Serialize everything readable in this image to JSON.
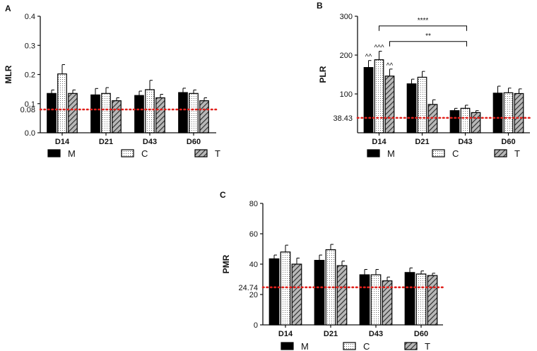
{
  "colors": {
    "ref_line": "#e0201b",
    "bar_M": "#000000",
    "axis": "#111111"
  },
  "legend_labels": {
    "M": "M",
    "C": "C",
    "T": "T"
  },
  "chart_data": [
    {
      "panel": "A",
      "type": "bar",
      "ylabel": "MLR",
      "categories": [
        "D14",
        "D21",
        "D43",
        "D60"
      ],
      "yticks": [
        "0.0",
        "0.1",
        "0.2",
        "0.3",
        "0.4"
      ],
      "ylim": [
        0,
        0.4
      ],
      "ref_line": {
        "value": 0.08,
        "label": "0.08"
      },
      "series": [
        {
          "name": "M",
          "values": [
            0.135,
            0.13,
            0.128,
            0.138
          ],
          "errors": [
            0.012,
            0.022,
            0.015,
            0.015
          ]
        },
        {
          "name": "C",
          "values": [
            0.202,
            0.135,
            0.148,
            0.135
          ],
          "errors": [
            0.032,
            0.02,
            0.032,
            0.012
          ]
        },
        {
          "name": "T",
          "values": [
            0.135,
            0.11,
            0.12,
            0.11
          ],
          "errors": [
            0.012,
            0.01,
            0.012,
            0.01
          ]
        }
      ],
      "annotations": []
    },
    {
      "panel": "B",
      "type": "bar",
      "ylabel": "PLR",
      "categories": [
        "D14",
        "D21",
        "D43",
        "D60"
      ],
      "yticks": [
        "100",
        "200",
        "300"
      ],
      "ylim": [
        0,
        300
      ],
      "ref_line": {
        "value": 38.43,
        "label": "38.43"
      },
      "series": [
        {
          "name": "M",
          "values": [
            168,
            126,
            57,
            102
          ],
          "errors": [
            18,
            12,
            6,
            18
          ]
        },
        {
          "name": "C",
          "values": [
            188,
            143,
            63,
            103
          ],
          "errors": [
            22,
            15,
            8,
            12
          ]
        },
        {
          "name": "T",
          "values": [
            146,
            73,
            52,
            101
          ],
          "errors": [
            18,
            12,
            5,
            12
          ]
        }
      ],
      "annotations": [
        {
          "text": "^^",
          "category": 0,
          "series": 0
        },
        {
          "text": "^^^",
          "category": 0,
          "series": 1
        },
        {
          "text": "^^",
          "category": 0,
          "series": 2
        },
        {
          "text": "****",
          "from_category": 0,
          "from_series": 1,
          "to_category": 2,
          "to_series": 1,
          "level": 275
        },
        {
          "text": "**",
          "from_category": 0,
          "from_series": 2,
          "to_category": 2,
          "to_series": 1,
          "level": 235
        }
      ]
    },
    {
      "panel": "C",
      "type": "bar",
      "ylabel": "PMR",
      "categories": [
        "D14",
        "D21",
        "D43",
        "D60"
      ],
      "yticks": [
        "0",
        "20",
        "40",
        "60",
        "80"
      ],
      "ylim": [
        0,
        80
      ],
      "ref_line": {
        "value": 24.74,
        "label": "24.74"
      },
      "series": [
        {
          "name": "M",
          "values": [
            43.5,
            42.5,
            33,
            34.5
          ],
          "errors": [
            2.5,
            3.5,
            3.5,
            3
          ]
        },
        {
          "name": "C",
          "values": [
            48,
            49.5,
            33,
            33.5
          ],
          "errors": [
            4.5,
            3.5,
            3.5,
            2
          ]
        },
        {
          "name": "T",
          "values": [
            40,
            39,
            29,
            32.5
          ],
          "errors": [
            4,
            3,
            2.5,
            1.5
          ]
        }
      ],
      "annotations": []
    }
  ]
}
